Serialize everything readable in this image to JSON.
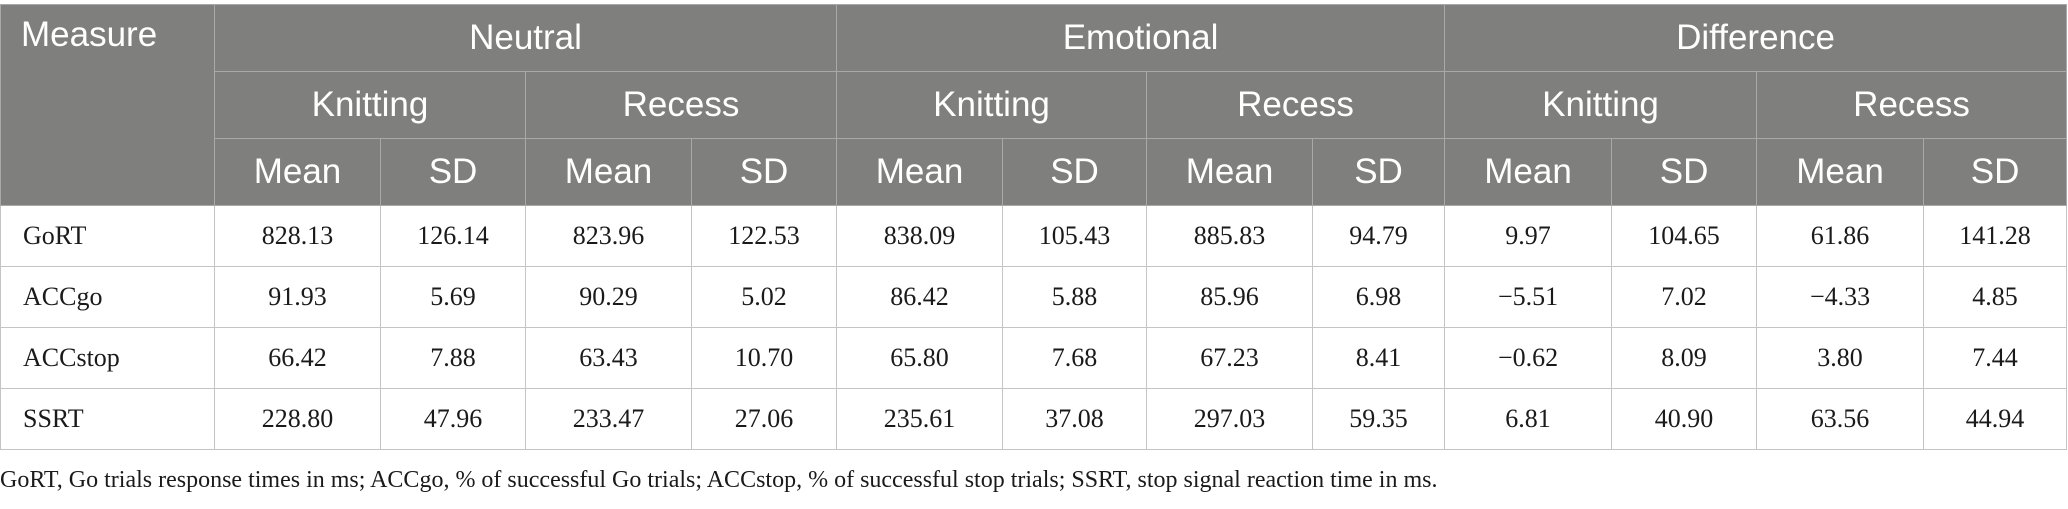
{
  "header": {
    "measure": "Measure",
    "groups": [
      "Neutral",
      "Emotional",
      "Difference"
    ],
    "subgroups": [
      "Knitting",
      "Recess",
      "Knitting",
      "Recess",
      "Knitting",
      "Recess"
    ],
    "stat_labels": [
      "Mean",
      "SD",
      "Mean",
      "SD",
      "Mean",
      "SD",
      "Mean",
      "SD",
      "Mean",
      "SD",
      "Mean",
      "SD"
    ]
  },
  "rows": [
    {
      "label": "GoRT",
      "values": [
        "828.13",
        "126.14",
        "823.96",
        "122.53",
        "838.09",
        "105.43",
        "885.83",
        "94.79",
        "9.97",
        "104.65",
        "61.86",
        "141.28"
      ]
    },
    {
      "label": "ACCgo",
      "values": [
        "91.93",
        "5.69",
        "90.29",
        "5.02",
        "86.42",
        "5.88",
        "85.96",
        "6.98",
        "−5.51",
        "7.02",
        "−4.33",
        "4.85"
      ]
    },
    {
      "label": "ACCstop",
      "values": [
        "66.42",
        "7.88",
        "63.43",
        "10.70",
        "65.80",
        "7.68",
        "67.23",
        "8.41",
        "−0.62",
        "8.09",
        "3.80",
        "7.44"
      ]
    },
    {
      "label": "SSRT",
      "values": [
        "228.80",
        "47.96",
        "233.47",
        "27.06",
        "235.61",
        "37.08",
        "297.03",
        "59.35",
        "6.81",
        "40.90",
        "63.56",
        "44.94"
      ]
    }
  ],
  "footnote": "GoRT, Go trials response times in ms; ACCgo, % of successful Go trials; ACCstop, % of successful stop trials; SSRT, stop signal reaction time in ms.",
  "colors": {
    "header_bg": "#7f7f7e",
    "header_text": "#ffffff",
    "border": "#c4c4c4"
  }
}
